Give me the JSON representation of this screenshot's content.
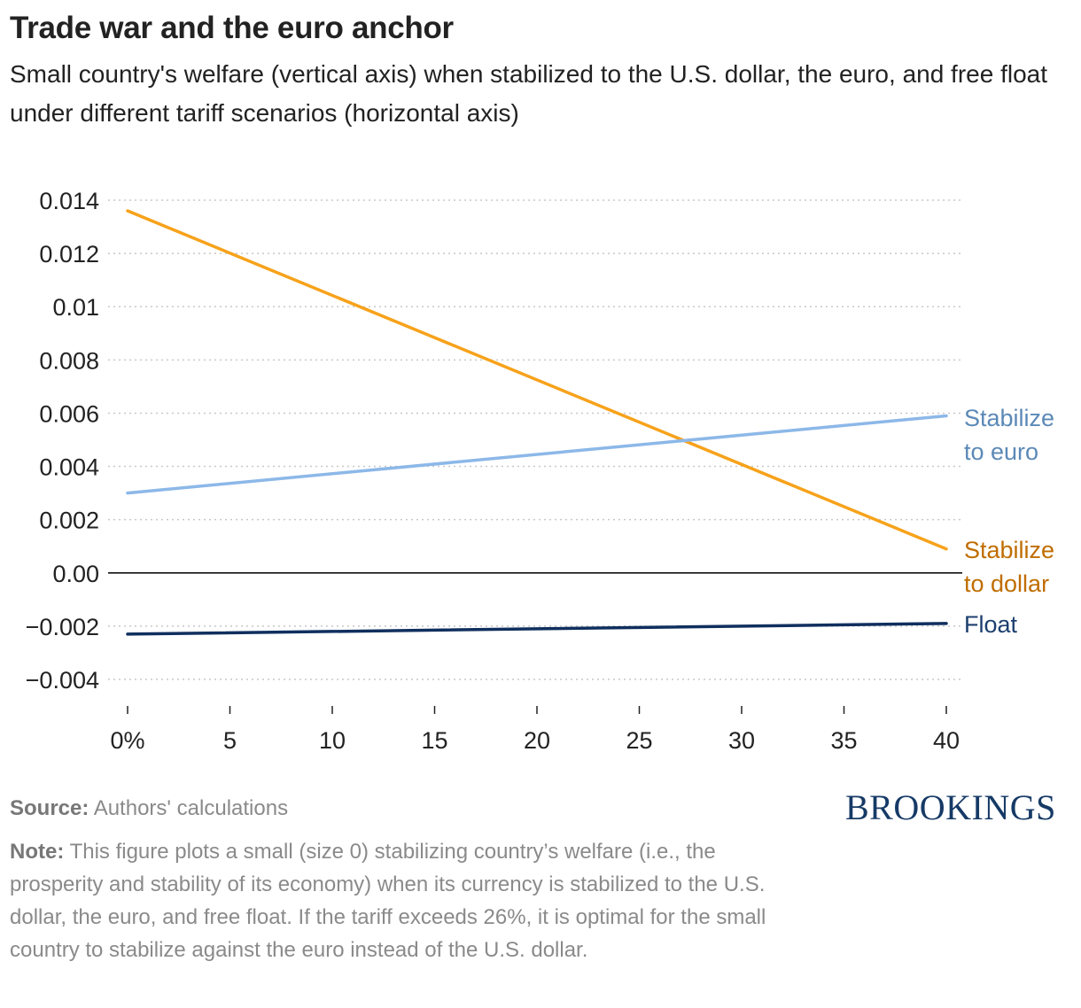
{
  "header": {
    "title": "Trade war and the euro anchor",
    "subtitle": "Small country's welfare (vertical axis) when stabilized to the U.S. dollar, the euro, and free float under different tariff scenarios (horizontal axis)"
  },
  "chart_data": {
    "type": "line",
    "title": "Trade war and the euro anchor",
    "xlabel": "",
    "ylabel": "",
    "x_ticks": [
      0,
      5,
      10,
      15,
      20,
      25,
      30,
      35,
      40
    ],
    "x_tick_labels": [
      "0%",
      "5",
      "10",
      "15",
      "20",
      "25",
      "30",
      "35",
      "40"
    ],
    "y_ticks": [
      -0.004,
      -0.002,
      0,
      0.002,
      0.004,
      0.006,
      0.008,
      0.01,
      0.012,
      0.014
    ],
    "y_tick_labels": [
      "−0.004",
      "−0.002",
      "0.00",
      "0.002",
      "0.004",
      "0.006",
      "0.008",
      "0.01",
      "0.012",
      "0.014"
    ],
    "xlim": [
      0,
      40
    ],
    "ylim": [
      -0.004,
      0.014
    ],
    "grid": true,
    "series": [
      {
        "name": "Stabilize to dollar",
        "label_lines": [
          "Stabilize",
          "to dollar"
        ],
        "color": "#f7a21b",
        "label_color": "#c06d00",
        "x": [
          0,
          40
        ],
        "y": [
          0.0136,
          0.0009
        ]
      },
      {
        "name": "Stabilize to euro",
        "label_lines": [
          "Stabilize",
          "to euro"
        ],
        "color": "#8cb8e8",
        "label_color": "#5b89b7",
        "x": [
          0,
          40
        ],
        "y": [
          0.003,
          0.0059
        ]
      },
      {
        "name": "Float",
        "label_lines": [
          "Float"
        ],
        "color": "#0f2f5e",
        "label_color": "#1c3f6e",
        "x": [
          0,
          40
        ],
        "y": [
          -0.0023,
          -0.0019
        ]
      }
    ]
  },
  "footer": {
    "source_label": "Source:",
    "source_text": "Authors' calculations",
    "note_label": "Note:",
    "note_text": "This figure plots a small (size 0) stabilizing country’s welfare (i.e., the prosperity and stability of its economy) when its currency is stabilized to the U.S. dollar, the euro, and free float. If the tariff exceeds 26%, it is optimal for the small country to stabilize against the euro instead of the U.S. dollar.",
    "brand": "BROOKINGS"
  }
}
